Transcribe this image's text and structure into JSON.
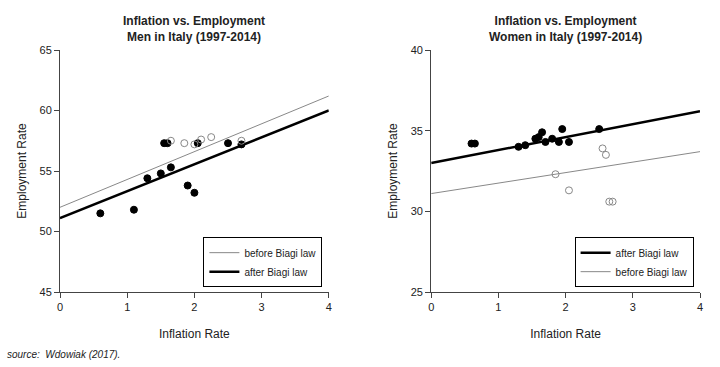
{
  "chart_data": [
    {
      "type": "scatter",
      "title": "Inflation vs. Employment\nMen in Italy (1997-2014)",
      "x_label": "Inflation Rate",
      "y_label": "Employment Rate",
      "xlim": [
        0,
        4
      ],
      "ylim": [
        45,
        65
      ],
      "xticks": [
        0,
        1,
        2,
        3,
        4
      ],
      "yticks": [
        45,
        50,
        55,
        60,
        65
      ],
      "grid": false,
      "legend": "lower right",
      "series": [
        {
          "name": "before Biagi law",
          "type": "line",
          "line_style": "thin",
          "color": "#888888",
          "x": [
            0,
            4
          ],
          "values": [
            52.0,
            61.2
          ]
        },
        {
          "name": "after Biagi law",
          "type": "line",
          "line_style": "thick",
          "color": "#000000",
          "x": [
            0,
            4
          ],
          "values": [
            51.1,
            60.0
          ]
        },
        {
          "type": "scatter",
          "marker": "circle",
          "color": "#000000",
          "x": [
            0.6,
            1.1,
            1.3,
            1.5,
            1.55,
            1.6,
            1.65,
            1.9,
            2.0,
            2.05,
            2.5,
            2.7
          ],
          "values": [
            51.5,
            51.8,
            54.4,
            54.8,
            57.3,
            57.3,
            55.3,
            53.8,
            53.2,
            57.3,
            57.3,
            57.2
          ]
        },
        {
          "type": "scatter",
          "marker": "circle-open",
          "color": "#888888",
          "x": [
            1.65,
            1.85,
            2.0,
            2.1,
            2.25,
            2.7
          ],
          "values": [
            57.5,
            57.3,
            57.2,
            57.6,
            57.8,
            57.5
          ]
        }
      ],
      "annotations": [
        {
          "text": "source:  Wdowiak (2017)."
        }
      ]
    },
    {
      "type": "scatter",
      "title": "Inflation vs. Employment\nWomen in Italy (1997-2014)",
      "x_label": "Inflation Rate",
      "y_label": "Employment Rate",
      "xlim": [
        0,
        4
      ],
      "ylim": [
        25,
        40
      ],
      "xticks": [
        0,
        1,
        2,
        3,
        4
      ],
      "yticks": [
        25,
        30,
        35,
        40
      ],
      "grid": false,
      "legend": "lower right",
      "series": [
        {
          "name": "after Biagi law",
          "type": "line",
          "line_style": "thick",
          "color": "#000000",
          "x": [
            0,
            4
          ],
          "values": [
            33.0,
            36.2
          ]
        },
        {
          "name": "before Biagi law",
          "type": "line",
          "line_style": "thin",
          "color": "#888888",
          "x": [
            0,
            4
          ],
          "values": [
            31.1,
            33.7
          ]
        },
        {
          "type": "scatter",
          "marker": "circle",
          "color": "#000000",
          "x": [
            0.6,
            0.65,
            1.3,
            1.4,
            1.55,
            1.6,
            1.65,
            1.7,
            1.8,
            1.9,
            1.95,
            2.05,
            2.5
          ],
          "values": [
            34.2,
            34.2,
            34.0,
            34.1,
            34.5,
            34.6,
            34.9,
            34.3,
            34.5,
            34.3,
            35.1,
            34.3,
            35.1
          ]
        },
        {
          "type": "scatter",
          "marker": "circle-open",
          "color": "#888888",
          "x": [
            1.85,
            2.05,
            2.55,
            2.6,
            2.65,
            2.7
          ],
          "values": [
            32.3,
            31.3,
            33.9,
            33.5,
            30.6,
            30.6
          ]
        }
      ]
    }
  ]
}
